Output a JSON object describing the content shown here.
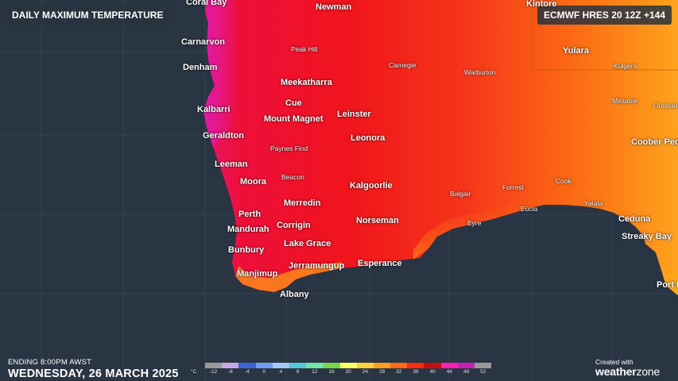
{
  "header": {
    "title": "DAILY MAXIMUM TEMPERATURE",
    "model": "ECMWF HRES 20 12Z +144"
  },
  "places": [
    {
      "name": "Coral Bay",
      "size": "big"
    },
    {
      "name": "Newman",
      "size": "big"
    },
    {
      "name": "Kintore",
      "size": "big"
    },
    {
      "name": "Carnarvon",
      "size": "big"
    },
    {
      "name": "Peak Hill",
      "size": "small"
    },
    {
      "name": "Yulara",
      "size": "big"
    },
    {
      "name": "Kulgera",
      "size": "small"
    },
    {
      "name": "Denham",
      "size": "big"
    },
    {
      "name": "Carnegie",
      "size": "small"
    },
    {
      "name": "Warburton",
      "size": "small"
    },
    {
      "name": "Meekatharra",
      "size": "big"
    },
    {
      "name": "Cue",
      "size": "big"
    },
    {
      "name": "Mintabie",
      "size": "small"
    },
    {
      "name": "Oodnad",
      "size": "small"
    },
    {
      "name": "Kalbarri",
      "size": "big"
    },
    {
      "name": "Leinster",
      "size": "big"
    },
    {
      "name": "Mount Magnet",
      "size": "big"
    },
    {
      "name": "Geraldton",
      "size": "big"
    },
    {
      "name": "Leonora",
      "size": "big"
    },
    {
      "name": "Coober Ped",
      "size": "big"
    },
    {
      "name": "Paynes Find",
      "size": "small"
    },
    {
      "name": "Leeman",
      "size": "big"
    },
    {
      "name": "Beacon",
      "size": "small"
    },
    {
      "name": "Moora",
      "size": "big"
    },
    {
      "name": "Cook",
      "size": "small"
    },
    {
      "name": "Kalgoorlie",
      "size": "big"
    },
    {
      "name": "Forrest",
      "size": "small"
    },
    {
      "name": "Balgair",
      "size": "small"
    },
    {
      "name": "Yalata",
      "size": "small"
    },
    {
      "name": "Merredin",
      "size": "big"
    },
    {
      "name": "Eucla",
      "size": "small"
    },
    {
      "name": "Perth",
      "size": "big"
    },
    {
      "name": "Ceduna",
      "size": "big"
    },
    {
      "name": "Norseman",
      "size": "big"
    },
    {
      "name": "Eyre",
      "size": "small"
    },
    {
      "name": "Corrigin",
      "size": "big"
    },
    {
      "name": "Mandurah",
      "size": "big"
    },
    {
      "name": "Streaky Bay",
      "size": "big"
    },
    {
      "name": "Lake Grace",
      "size": "big"
    },
    {
      "name": "Bunbury",
      "size": "big"
    },
    {
      "name": "Esperance",
      "size": "big"
    },
    {
      "name": "Jerramungup",
      "size": "big"
    },
    {
      "name": "Manjimup",
      "size": "big"
    },
    {
      "name": "Port L",
      "size": "big"
    },
    {
      "name": "Albany",
      "size": "big"
    }
  ],
  "footer": {
    "ending": "ENDING 8:00PM AWST",
    "date": "WEDNESDAY, 26 MARCH 2025"
  },
  "legend": {
    "unit": "°C",
    "colors": [
      "#9a9a9a",
      "#c7a6e6",
      "#3f62d6",
      "#6f9cf0",
      "#a3c8f5",
      "#56c7d8",
      "#6fe6a8",
      "#7ad64a",
      "#ffff66",
      "#ffd23a",
      "#ff9f1f",
      "#ff6a14",
      "#ff2a10",
      "#c80d10",
      "#ff1fb5",
      "#c81fb5",
      "#9a9a9a"
    ],
    "ticks": [
      "-12",
      "-8",
      "-4",
      "0",
      "4",
      "8",
      "12",
      "16",
      "20",
      "24",
      "28",
      "32",
      "36",
      "40",
      "44",
      "48",
      "52"
    ]
  },
  "branding": {
    "created": "Created with",
    "logo_main": "weather",
    "logo_accent": "zone"
  }
}
